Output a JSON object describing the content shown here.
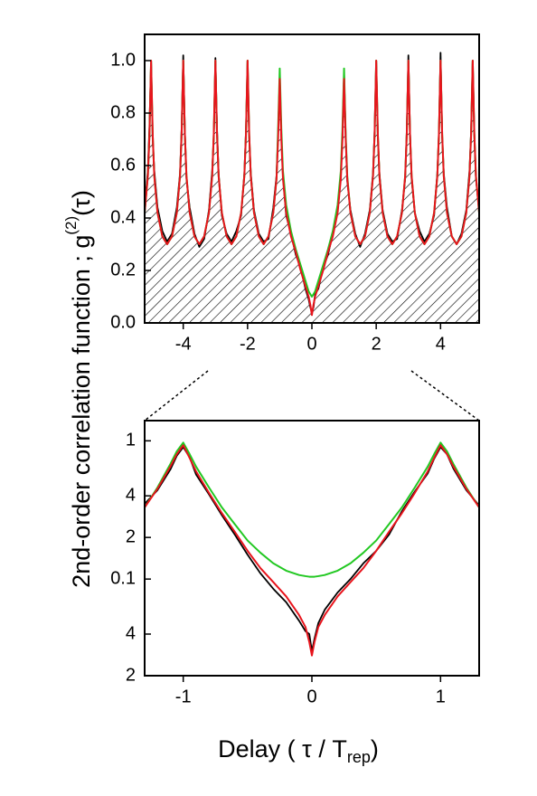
{
  "chart_data": [
    {
      "type": "line",
      "ylabel": [
        "2nd-order correlation function ; g",
        "(2)",
        "(τ)"
      ],
      "xlim": [
        -5.2,
        5.2
      ],
      "xticks": [
        -4,
        -2,
        0,
        2,
        4
      ],
      "ylim": [
        0,
        1.1
      ],
      "yticks": [
        {
          "value": 0,
          "label": "0.0"
        },
        0.2,
        0.4,
        0.6,
        0.8,
        {
          "value": 1,
          "label": "1.0"
        }
      ],
      "log_y": false,
      "hatch_under": 2,
      "x": [
        -5.2,
        -5.1,
        -5.05,
        -5,
        -4.95,
        -4.9,
        -4.8,
        -4.65,
        -4.5,
        -4.35,
        -4.2,
        -4.1,
        -4.05,
        -4,
        -3.95,
        -3.9,
        -3.8,
        -3.65,
        -3.5,
        -3.35,
        -3.2,
        -3.1,
        -3.05,
        -3,
        -2.95,
        -2.9,
        -2.8,
        -2.65,
        -2.5,
        -2.35,
        -2.2,
        -2.1,
        -2.05,
        -2,
        -1.95,
        -1.9,
        -1.8,
        -1.65,
        -1.5,
        -1.35,
        -1.2,
        -1.1,
        -1.05,
        -1,
        -0.95,
        -0.9,
        -0.8,
        -0.65,
        -0.5,
        -0.35,
        -0.2,
        -0.1,
        -0.05,
        0,
        0.05,
        0.1,
        0.2,
        0.35,
        0.5,
        0.65,
        0.8,
        0.9,
        0.95,
        1,
        1.05,
        1.1,
        1.2,
        1.35,
        1.5,
        1.65,
        1.8,
        1.9,
        1.95,
        2,
        2.05,
        2.1,
        2.2,
        2.35,
        2.5,
        2.65,
        2.8,
        2.9,
        2.95,
        3,
        3.05,
        3.1,
        3.2,
        3.35,
        3.5,
        3.65,
        3.8,
        3.9,
        3.95,
        4,
        4.05,
        4.1,
        4.2,
        4.35,
        4.5,
        4.65,
        4.8,
        4.9,
        4.95,
        5,
        5.05,
        5.1,
        5.2
      ],
      "series": [
        {
          "color": "#000000",
          "values": [
            0.44,
            0.58,
            0.75,
            1.0,
            0.7,
            0.58,
            0.44,
            0.35,
            0.31,
            0.34,
            0.44,
            0.57,
            0.74,
            1.02,
            0.73,
            0.55,
            0.44,
            0.34,
            0.29,
            0.32,
            0.43,
            0.58,
            0.71,
            1.01,
            0.74,
            0.57,
            0.41,
            0.34,
            0.31,
            0.35,
            0.41,
            0.57,
            0.73,
            1.0,
            0.71,
            0.57,
            0.43,
            0.34,
            0.31,
            0.32,
            0.44,
            0.56,
            0.72,
            0.93,
            0.71,
            0.56,
            0.41,
            0.34,
            0.26,
            0.21,
            0.13,
            0.09,
            0.06,
            0.04,
            0.06,
            0.11,
            0.13,
            0.21,
            0.26,
            0.34,
            0.43,
            0.56,
            0.71,
            0.95,
            0.71,
            0.54,
            0.43,
            0.34,
            0.29,
            0.34,
            0.43,
            0.57,
            0.73,
            1.0,
            0.71,
            0.57,
            0.43,
            0.34,
            0.31,
            0.32,
            0.43,
            0.55,
            0.73,
            1.02,
            0.73,
            0.55,
            0.42,
            0.35,
            0.31,
            0.34,
            0.41,
            0.57,
            0.72,
            1.03,
            0.71,
            0.57,
            0.44,
            0.33,
            0.3,
            0.34,
            0.43,
            0.58,
            0.73,
            1.0,
            0.72,
            0.55,
            0.43
          ]
        },
        {
          "color": "#22c822",
          "values": [
            0.42,
            0.56,
            0.72,
            1.0,
            0.72,
            0.56,
            0.42,
            0.33,
            0.3,
            0.33,
            0.42,
            0.56,
            0.72,
            1.0,
            0.72,
            0.56,
            0.42,
            0.33,
            0.3,
            0.33,
            0.42,
            0.56,
            0.72,
            1.0,
            0.72,
            0.56,
            0.42,
            0.33,
            0.3,
            0.33,
            0.42,
            0.56,
            0.72,
            1.0,
            0.72,
            0.56,
            0.42,
            0.33,
            0.3,
            0.33,
            0.42,
            0.55,
            0.74,
            0.97,
            0.74,
            0.58,
            0.45,
            0.35,
            0.28,
            0.22,
            0.16,
            0.12,
            0.11,
            0.1,
            0.11,
            0.12,
            0.16,
            0.22,
            0.28,
            0.35,
            0.45,
            0.58,
            0.74,
            0.97,
            0.72,
            0.56,
            0.42,
            0.33,
            0.3,
            0.33,
            0.42,
            0.56,
            0.72,
            1.0,
            0.72,
            0.56,
            0.42,
            0.33,
            0.3,
            0.33,
            0.42,
            0.56,
            0.72,
            1.0,
            0.72,
            0.56,
            0.42,
            0.33,
            0.3,
            0.33,
            0.42,
            0.56,
            0.72,
            1.0,
            0.72,
            0.56,
            0.42,
            0.33,
            0.3,
            0.33,
            0.42,
            0.56,
            0.72,
            1.0,
            0.72,
            0.56,
            0.42
          ]
        },
        {
          "color": "#e8141c",
          "values": [
            0.42,
            0.56,
            0.72,
            1.0,
            0.72,
            0.56,
            0.42,
            0.33,
            0.3,
            0.33,
            0.42,
            0.56,
            0.72,
            1.0,
            0.72,
            0.56,
            0.42,
            0.33,
            0.3,
            0.33,
            0.42,
            0.56,
            0.72,
            1.0,
            0.72,
            0.56,
            0.42,
            0.33,
            0.3,
            0.33,
            0.42,
            0.56,
            0.72,
            1.0,
            0.72,
            0.56,
            0.42,
            0.33,
            0.3,
            0.33,
            0.42,
            0.55,
            0.7,
            0.93,
            0.7,
            0.55,
            0.42,
            0.33,
            0.27,
            0.2,
            0.14,
            0.1,
            0.07,
            0.03,
            0.07,
            0.1,
            0.14,
            0.2,
            0.27,
            0.33,
            0.42,
            0.55,
            0.7,
            0.93,
            0.7,
            0.55,
            0.42,
            0.33,
            0.3,
            0.33,
            0.42,
            0.56,
            0.72,
            1.0,
            0.72,
            0.56,
            0.42,
            0.33,
            0.3,
            0.33,
            0.42,
            0.56,
            0.72,
            1.0,
            0.72,
            0.56,
            0.42,
            0.33,
            0.3,
            0.33,
            0.42,
            0.56,
            0.72,
            1.0,
            0.72,
            0.56,
            0.42,
            0.33,
            0.3,
            0.33,
            0.42,
            0.56,
            0.72,
            1.0,
            0.72,
            0.56,
            0.42
          ]
        }
      ]
    },
    {
      "type": "line",
      "xlabel": [
        "Delay ( τ / T",
        "rep",
        ")"
      ],
      "xlim": [
        -1.3,
        1.3
      ],
      "xticks": [
        -1,
        0,
        1
      ],
      "ylim": [
        0.02,
        1.4
      ],
      "yticks": [
        1,
        {
          "value": 0.4,
          "label": "4"
        },
        {
          "value": 0.2,
          "label": "2"
        },
        0.1,
        {
          "value": 0.04,
          "label": "4"
        },
        {
          "value": 0.02,
          "label": "2"
        }
      ],
      "log_y": true,
      "x": [
        -1.3,
        -1.2,
        -1.1,
        -1.05,
        -1,
        -0.95,
        -0.9,
        -0.8,
        -0.7,
        -0.6,
        -0.5,
        -0.4,
        -0.3,
        -0.2,
        -0.1,
        -0.05,
        -0.02,
        0,
        0.02,
        0.05,
        0.1,
        0.2,
        0.3,
        0.4,
        0.5,
        0.6,
        0.7,
        0.8,
        0.9,
        0.95,
        1,
        1.05,
        1.1,
        1.2,
        1.3
      ],
      "series": [
        {
          "color": "#000000",
          "values": [
            0.35,
            0.44,
            0.62,
            0.78,
            0.9,
            0.76,
            0.57,
            0.41,
            0.29,
            0.21,
            0.15,
            0.11,
            0.085,
            0.068,
            0.05,
            0.042,
            0.04,
            0.03,
            0.037,
            0.048,
            0.06,
            0.08,
            0.1,
            0.13,
            0.16,
            0.21,
            0.31,
            0.43,
            0.58,
            0.74,
            0.9,
            0.8,
            0.63,
            0.44,
            0.34
          ]
        },
        {
          "color": "#22c822",
          "values": [
            0.33,
            0.46,
            0.68,
            0.84,
            0.97,
            0.8,
            0.65,
            0.46,
            0.33,
            0.25,
            0.19,
            0.155,
            0.13,
            0.115,
            0.107,
            0.105,
            0.104,
            0.104,
            0.104,
            0.105,
            0.107,
            0.115,
            0.13,
            0.155,
            0.19,
            0.25,
            0.33,
            0.46,
            0.65,
            0.8,
            0.97,
            0.84,
            0.68,
            0.46,
            0.33
          ]
        },
        {
          "color": "#e8141c",
          "values": [
            0.33,
            0.45,
            0.65,
            0.8,
            0.93,
            0.75,
            0.6,
            0.42,
            0.3,
            0.22,
            0.16,
            0.12,
            0.095,
            0.075,
            0.055,
            0.045,
            0.035,
            0.028,
            0.035,
            0.045,
            0.055,
            0.075,
            0.095,
            0.12,
            0.16,
            0.22,
            0.3,
            0.42,
            0.6,
            0.75,
            0.93,
            0.8,
            0.65,
            0.45,
            0.33
          ]
        }
      ]
    }
  ]
}
